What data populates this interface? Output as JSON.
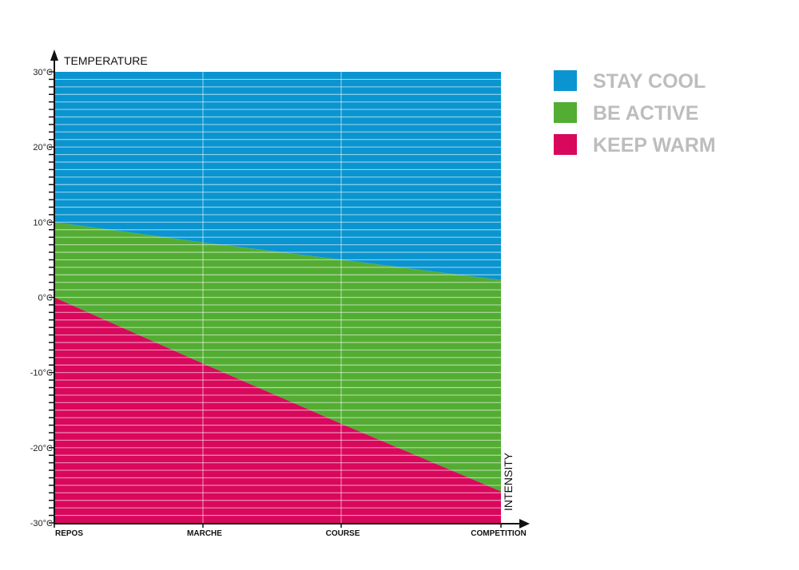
{
  "chart_data": {
    "type": "area",
    "title": "",
    "ylabel": "TEMPERATURE",
    "xlabel": "INTENSITY",
    "categories": [
      "REPOS",
      "MARCHE",
      "COURSE",
      "COMPETITION"
    ],
    "ylim": [
      -30,
      30
    ],
    "y_ticks": [
      30,
      20,
      10,
      0,
      -10,
      -20,
      -30
    ],
    "y_tick_labels": [
      "30°C",
      "20°C",
      "10°C",
      "0°C",
      "-10°C",
      "-20°C",
      "-30°C"
    ],
    "grid": "horizontal stripes every 1°C, vertical lines at categories",
    "legend_position": "right",
    "series": [
      {
        "name": "STAY COOL",
        "color": "#0a95d0",
        "lower": [
          10,
          7.3,
          5,
          2.3
        ],
        "upper": [
          30,
          30,
          30,
          30
        ]
      },
      {
        "name": "BE ACTIVE",
        "color": "#53ad33",
        "lower": [
          0,
          -8.8,
          -16.8,
          -25.8
        ],
        "upper": [
          10,
          7.3,
          5,
          2.3
        ]
      },
      {
        "name": "KEEP WARM",
        "color": "#d9085c",
        "lower": [
          -30,
          -30,
          -30,
          -30
        ],
        "upper": [
          0,
          -8.8,
          -16.8,
          -25.8
        ]
      }
    ]
  }
}
